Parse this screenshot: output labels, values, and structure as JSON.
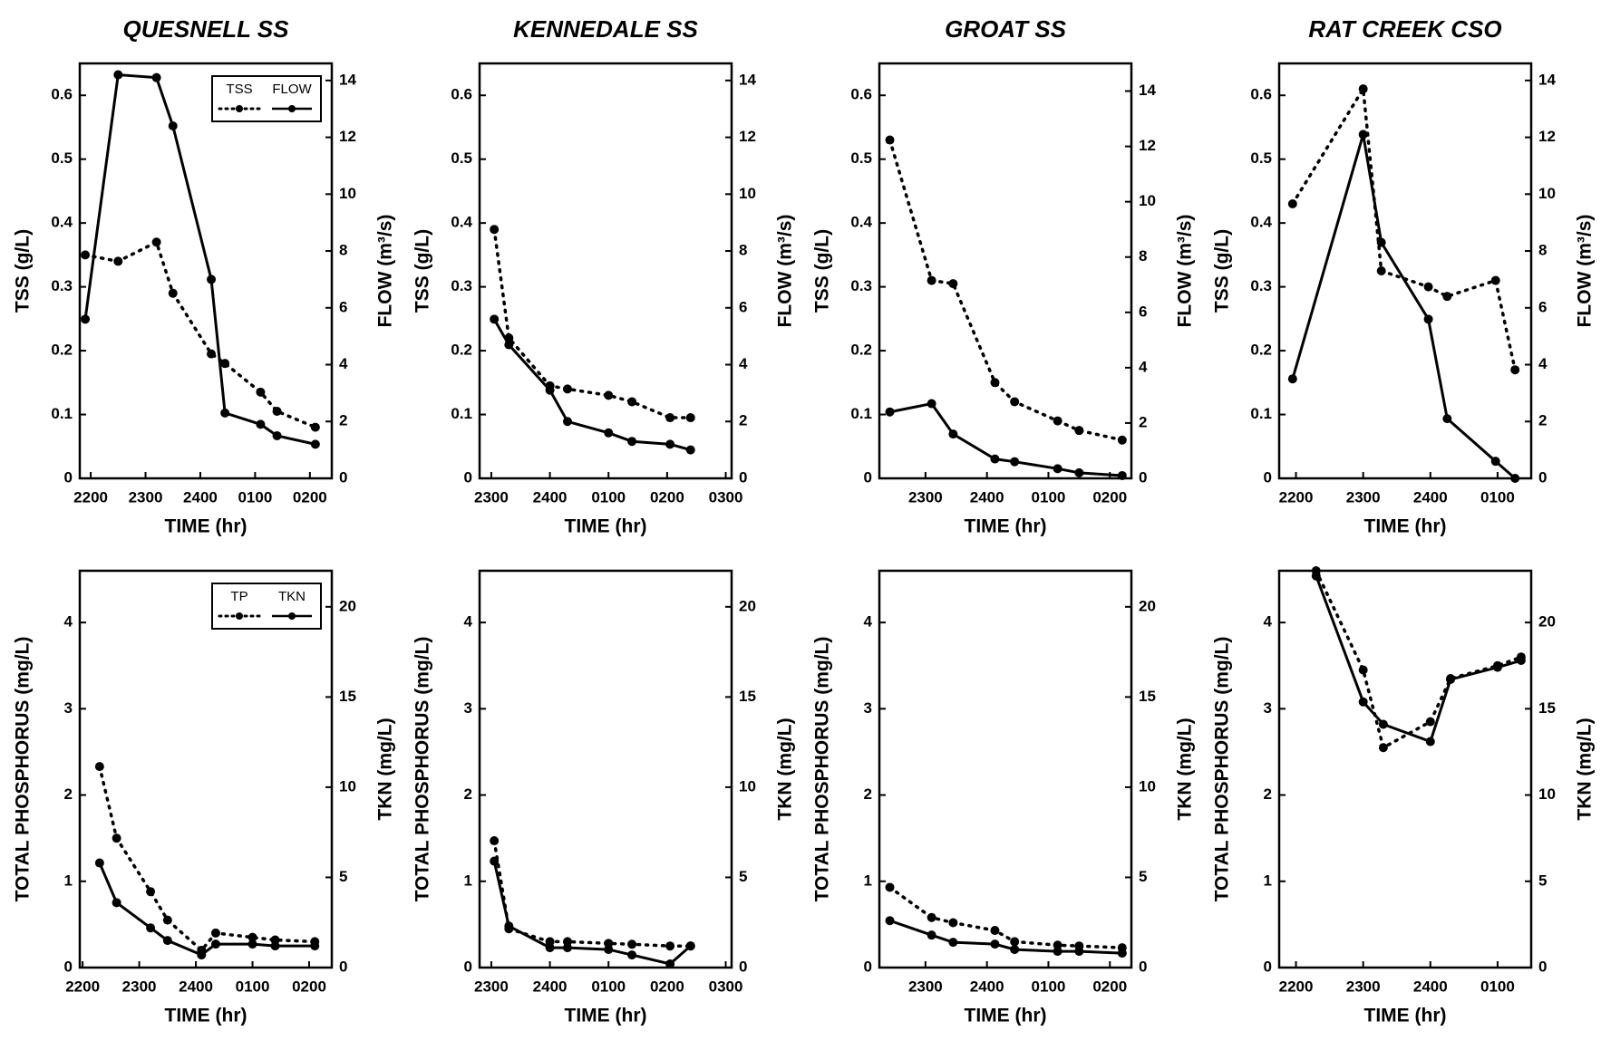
{
  "chart_data": [
    {
      "type": "line",
      "title": "QUESNELL SS",
      "xlabel": "TIME (hr)",
      "ylabel": "TSS (g/L)",
      "y2label": "FLOW (m³/s)",
      "x": [
        21.9,
        22.5,
        23.2,
        23.5,
        24.2,
        24.45,
        25.1,
        25.4,
        26.1
      ],
      "xlim": [
        21.8,
        26.4
      ],
      "xticks": [
        {
          "value": 22,
          "label": "2200"
        },
        {
          "value": 23,
          "label": "2300"
        },
        {
          "value": 24,
          "label": "2400"
        },
        {
          "value": 25,
          "label": "0100"
        },
        {
          "value": 26,
          "label": "0200"
        }
      ],
      "ylim": [
        0,
        0.65
      ],
      "yticks": [
        0,
        0.1,
        0.2,
        0.3,
        0.4,
        0.5,
        0.6
      ],
      "y2lim": [
        0,
        14.6
      ],
      "y2ticks": [
        0,
        2,
        4,
        6,
        8,
        10,
        12,
        14
      ],
      "legend": "upper right",
      "series": [
        {
          "name": "TSS",
          "color": "#000000",
          "style": "dotted",
          "values": [
            0.35,
            0.34,
            0.37,
            0.29,
            0.195,
            0.18,
            0.135,
            0.105,
            0.08
          ]
        },
        {
          "name": "FLOW",
          "color": "#000000",
          "style": "solid",
          "axis": "y2",
          "values": [
            5.6,
            14.2,
            14.1,
            12.4,
            7.0,
            2.3,
            1.9,
            1.5,
            1.2
          ]
        }
      ]
    },
    {
      "type": "line",
      "title": "KENNEDALE SS",
      "xlabel": "TIME (hr)",
      "ylabel": "TSS (g/L)",
      "y2label": "FLOW (m³/s)",
      "x": [
        23.05,
        23.3,
        24.0,
        24.3,
        25.0,
        25.4,
        26.05,
        26.4
      ],
      "xlim": [
        22.8,
        27.1
      ],
      "xticks": [
        {
          "value": 23,
          "label": "2300"
        },
        {
          "value": 24,
          "label": "2400"
        },
        {
          "value": 25,
          "label": "0100"
        },
        {
          "value": 26,
          "label": "0200"
        },
        {
          "value": 27,
          "label": "0300"
        }
      ],
      "ylim": [
        0,
        0.65
      ],
      "yticks": [
        0,
        0.1,
        0.2,
        0.3,
        0.4,
        0.5,
        0.6
      ],
      "y2lim": [
        0,
        14.6
      ],
      "y2ticks": [
        0,
        2,
        4,
        6,
        8,
        10,
        12,
        14
      ],
      "series": [
        {
          "color": "#000000",
          "style": "dotted",
          "values": [
            0.39,
            0.22,
            0.145,
            0.14,
            0.13,
            0.12,
            0.095,
            0.095
          ]
        },
        {
          "color": "#000000",
          "style": "solid",
          "axis": "y2",
          "values": [
            5.6,
            4.7,
            3.1,
            2.0,
            1.6,
            1.3,
            1.2,
            1.0
          ]
        }
      ]
    },
    {
      "type": "line",
      "title": "GROAT SS",
      "xlabel": "TIME (hr)",
      "ylabel": "TSS (g/L)",
      "y2label": "FLOW (m³/s)",
      "x": [
        22.42,
        23.1,
        23.45,
        24.13,
        24.45,
        25.15,
        25.5,
        26.2
      ],
      "xlim": [
        22.25,
        26.35
      ],
      "xticks": [
        {
          "value": 23,
          "label": "2300"
        },
        {
          "value": 24,
          "label": "2400"
        },
        {
          "value": 25,
          "label": "0100"
        },
        {
          "value": 26,
          "label": "0200"
        }
      ],
      "ylim": [
        0,
        0.65
      ],
      "yticks": [
        0,
        0.1,
        0.2,
        0.3,
        0.4,
        0.5,
        0.6
      ],
      "y2lim": [
        0,
        15
      ],
      "y2ticks": [
        0,
        2,
        4,
        6,
        8,
        10,
        12,
        14
      ],
      "series": [
        {
          "color": "#000000",
          "style": "dotted",
          "values": [
            0.53,
            0.31,
            0.305,
            0.15,
            0.12,
            0.09,
            0.075,
            0.06
          ]
        },
        {
          "color": "#000000",
          "style": "solid",
          "axis": "y2",
          "values": [
            2.4,
            2.7,
            1.6,
            0.7,
            0.6,
            0.35,
            0.2,
            0.1
          ]
        }
      ]
    },
    {
      "type": "line",
      "title": "RAT CREEK CSO",
      "xlabel": "TIME (hr)",
      "ylabel": "TSS (g/L)",
      "y2label": "FLOW (m³/s)",
      "x": [
        21.95,
        23.0,
        23.27,
        23.97,
        24.25,
        24.97,
        25.26
      ],
      "xlim": [
        21.75,
        25.5
      ],
      "xticks": [
        {
          "value": 22,
          "label": "2200"
        },
        {
          "value": 23,
          "label": "2300"
        },
        {
          "value": 24,
          "label": "2400"
        },
        {
          "value": 25,
          "label": "0100"
        }
      ],
      "ylim": [
        0,
        0.65
      ],
      "yticks": [
        0,
        0.1,
        0.2,
        0.3,
        0.4,
        0.5,
        0.6
      ],
      "y2lim": [
        0,
        14.6
      ],
      "y2ticks": [
        0,
        2,
        4,
        6,
        8,
        10,
        12,
        14
      ],
      "series": [
        {
          "color": "#000000",
          "style": "dotted",
          "values": [
            0.43,
            0.61,
            0.325,
            0.3,
            0.285,
            0.31,
            0.17
          ]
        },
        {
          "color": "#000000",
          "style": "solid",
          "axis": "y2",
          "values": [
            3.5,
            12.1,
            8.3,
            5.6,
            2.1,
            0.6,
            0.0
          ]
        }
      ]
    },
    {
      "type": "line",
      "xlabel": "TIME (hr)",
      "ylabel": "TOTAL PHOSPHORUS (mg/L)",
      "y2label": "TKN (mg/L)",
      "x": [
        22.3,
        22.6,
        23.2,
        23.5,
        24.1,
        24.35,
        25.0,
        25.4,
        26.1
      ],
      "xlim": [
        21.95,
        26.4
      ],
      "xticks": [
        {
          "value": 22,
          "label": "2200"
        },
        {
          "value": 23,
          "label": "2300"
        },
        {
          "value": 24,
          "label": "2400"
        },
        {
          "value": 25,
          "label": "0100"
        },
        {
          "value": 26,
          "label": "0200"
        }
      ],
      "ylim": [
        0,
        4.6
      ],
      "yticks": [
        0,
        1,
        2,
        3,
        4
      ],
      "y2lim": [
        0,
        22
      ],
      "y2ticks": [
        0,
        5,
        10,
        15,
        20
      ],
      "legend": "upper right",
      "series": [
        {
          "name": "TP",
          "color": "#000000",
          "style": "dotted",
          "values": [
            2.33,
            1.5,
            0.88,
            0.55,
            0.2,
            0.4,
            0.35,
            0.32,
            0.3
          ]
        },
        {
          "name": "TKN",
          "color": "#000000",
          "style": "solid",
          "axis": "y2",
          "values": [
            5.8,
            3.6,
            2.2,
            1.5,
            0.7,
            1.3,
            1.3,
            1.2,
            1.2
          ]
        }
      ]
    },
    {
      "type": "line",
      "xlabel": "TIME (hr)",
      "ylabel": "TOTAL PHOSPHORUS (mg/L)",
      "y2label": "TKN (mg/L)",
      "x": [
        23.05,
        23.3,
        24.0,
        24.3,
        25.0,
        25.4,
        26.05,
        26.4
      ],
      "xlim": [
        22.8,
        27.1
      ],
      "xticks": [
        {
          "value": 23,
          "label": "2300"
        },
        {
          "value": 24,
          "label": "2400"
        },
        {
          "value": 25,
          "label": "0100"
        },
        {
          "value": 26,
          "label": "0200"
        },
        {
          "value": 27,
          "label": "0300"
        }
      ],
      "ylim": [
        0,
        4.6
      ],
      "yticks": [
        0,
        1,
        2,
        3,
        4
      ],
      "y2lim": [
        0,
        22
      ],
      "y2ticks": [
        0,
        5,
        10,
        15,
        20
      ],
      "series": [
        {
          "color": "#000000",
          "style": "dotted",
          "values": [
            1.47,
            0.45,
            0.3,
            0.3,
            0.28,
            0.27,
            0.25,
            0.25
          ]
        },
        {
          "color": "#000000",
          "style": "solid",
          "axis": "y2",
          "values": [
            5.9,
            2.3,
            1.1,
            1.1,
            1.0,
            0.7,
            0.2,
            1.2
          ]
        }
      ]
    },
    {
      "type": "line",
      "xlabel": "TIME (hr)",
      "ylabel": "TOTAL PHOSPHORUS (mg/L)",
      "y2label": "TKN (mg/L)",
      "x": [
        22.42,
        23.1,
        23.45,
        24.13,
        24.45,
        25.15,
        25.5,
        26.2
      ],
      "xlim": [
        22.25,
        26.35
      ],
      "xticks": [
        {
          "value": 23,
          "label": "2300"
        },
        {
          "value": 24,
          "label": "2400"
        },
        {
          "value": 25,
          "label": "0100"
        },
        {
          "value": 26,
          "label": "0200"
        }
      ],
      "ylim": [
        0,
        4.6
      ],
      "yticks": [
        0,
        1,
        2,
        3,
        4
      ],
      "y2lim": [
        0,
        22
      ],
      "y2ticks": [
        0,
        5,
        10,
        15,
        20
      ],
      "series": [
        {
          "color": "#000000",
          "style": "dotted",
          "values": [
            0.93,
            0.58,
            0.52,
            0.43,
            0.3,
            0.26,
            0.25,
            0.23
          ]
        },
        {
          "color": "#000000",
          "style": "solid",
          "axis": "y2",
          "values": [
            2.6,
            1.8,
            1.4,
            1.3,
            1.0,
            0.9,
            0.9,
            0.8
          ]
        }
      ]
    },
    {
      "type": "line",
      "xlabel": "TIME (hr)",
      "ylabel": "TOTAL PHOSPHORUS (mg/L)",
      "y2label": "TKN (mg/L)",
      "x": [
        22.3,
        23.0,
        23.3,
        24.0,
        24.3,
        25.0,
        25.35
      ],
      "xlim": [
        21.75,
        25.5
      ],
      "xticks": [
        {
          "value": 22,
          "label": "2200"
        },
        {
          "value": 23,
          "label": "2300"
        },
        {
          "value": 24,
          "label": "2400"
        },
        {
          "value": 25,
          "label": "0100"
        }
      ],
      "ylim": [
        0,
        4.6
      ],
      "yticks": [
        0,
        1,
        2,
        3,
        4
      ],
      "y2lim": [
        0,
        23
      ],
      "y2ticks": [
        0,
        5,
        10,
        15,
        20
      ],
      "series": [
        {
          "color": "#000000",
          "style": "dotted",
          "values": [
            4.6,
            3.45,
            2.55,
            2.85,
            3.35,
            3.5,
            3.6
          ]
        },
        {
          "color": "#000000",
          "style": "solid",
          "axis": "y2",
          "values": [
            22.7,
            15.4,
            14.1,
            13.1,
            16.7,
            17.4,
            17.8
          ]
        }
      ]
    }
  ]
}
